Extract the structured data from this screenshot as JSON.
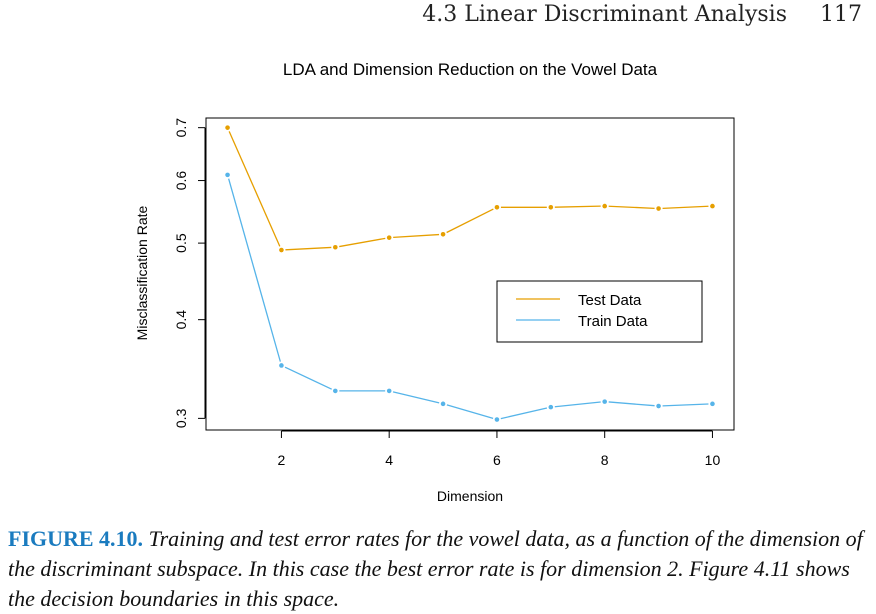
{
  "header": {
    "section": "4.3 Linear Discriminant Analysis",
    "page_number": "117"
  },
  "chart_data": {
    "type": "line",
    "title": "LDA and Dimension Reduction on the Vowel Data",
    "xlabel": "Dimension",
    "ylabel": "Misclassification Rate",
    "x": [
      1,
      2,
      3,
      4,
      5,
      6,
      7,
      8,
      9,
      10
    ],
    "xticks": [
      "2",
      "4",
      "6",
      "8",
      "10"
    ],
    "yticks": [
      "0.3",
      "0.4",
      "0.5",
      "0.6",
      "0.7"
    ],
    "ylim": [
      0.29,
      0.72
    ],
    "yscale": "log",
    "legend_position": "center-right",
    "series": [
      {
        "name": "Test Data",
        "color": "#E69F00",
        "values": [
          0.7,
          0.49,
          0.494,
          0.508,
          0.513,
          0.555,
          0.555,
          0.557,
          0.553,
          0.557
        ]
      },
      {
        "name": "Train Data",
        "color": "#56B4E9",
        "values": [
          0.61,
          0.35,
          0.325,
          0.325,
          0.313,
          0.299,
          0.31,
          0.315,
          0.311,
          0.313
        ]
      }
    ]
  },
  "caption": {
    "label": "FIGURE 4.10.",
    "text": "Training and test error rates for the vowel data, as a function of the dimension of the discriminant subspace. In this case the best error rate is for dimension 2. Figure 4.11 shows the decision boundaries in this space."
  }
}
